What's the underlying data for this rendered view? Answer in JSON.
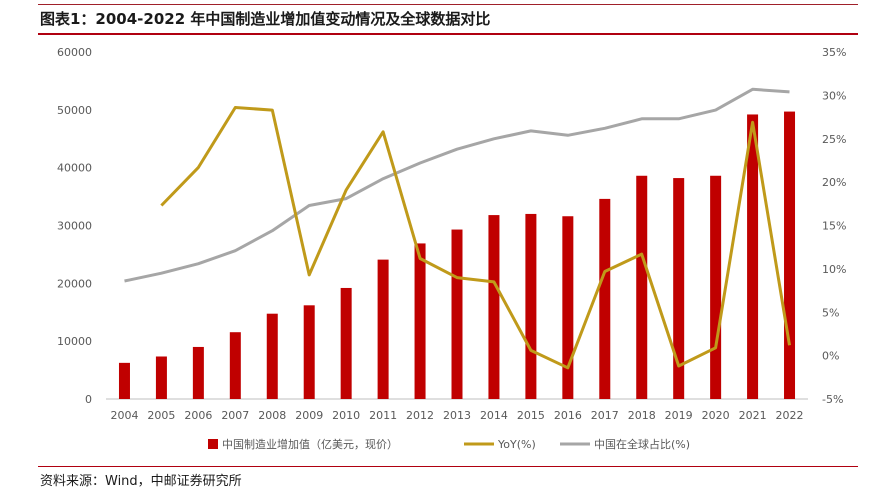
{
  "header": {
    "title": "图表1：2004-2022 年中国制造业增加值变动情况及全球数据对比"
  },
  "footer": {
    "source": "资料来源：Wind，中邮证券研究所"
  },
  "colors": {
    "bar": "#c00000",
    "yoy": "#c09a1a",
    "share": "#a6a6a6",
    "rule": "#b00010"
  },
  "chart_data": {
    "type": "bar",
    "categories": [
      "2004",
      "2005",
      "2006",
      "2007",
      "2008",
      "2009",
      "2010",
      "2011",
      "2012",
      "2013",
      "2014",
      "2015",
      "2016",
      "2017",
      "2018",
      "2019",
      "2020",
      "2021",
      "2022"
    ],
    "series": [
      {
        "name": "中国制造业增加值（亿美元，现价）",
        "type": "bar",
        "axis": "left",
        "values": [
          6250,
          7350,
          9000,
          11550,
          14750,
          16200,
          19200,
          24100,
          26900,
          29300,
          31800,
          32000,
          31600,
          34600,
          38600,
          38200,
          38600,
          49200,
          49700
        ]
      },
      {
        "name": "YoY(%)",
        "type": "line",
        "axis": "right",
        "values": [
          null,
          17.3,
          21.7,
          28.6,
          28.3,
          9.3,
          19.1,
          25.8,
          11.2,
          9.0,
          8.5,
          0.6,
          -1.4,
          9.7,
          11.7,
          -1.2,
          0.9,
          26.9,
          1.2
        ]
      },
      {
        "name": "中国在全球占比(%)",
        "type": "line",
        "axis": "right",
        "values": [
          8.6,
          9.5,
          10.6,
          12.1,
          14.4,
          17.3,
          18.1,
          20.4,
          22.2,
          23.8,
          25.0,
          25.9,
          25.4,
          26.2,
          27.3,
          27.3,
          28.3,
          30.7,
          30.4
        ]
      }
    ],
    "ylim_left": [
      0,
      60000
    ],
    "yticks_left": [
      "0",
      "10000",
      "20000",
      "30000",
      "40000",
      "50000",
      "60000"
    ],
    "ylim_right": [
      -5,
      35
    ],
    "yticks_right": [
      "-5%",
      "0%",
      "5%",
      "10%",
      "15%",
      "20%",
      "25%",
      "30%",
      "35%"
    ],
    "grid": false,
    "legend_position": "bottom"
  }
}
